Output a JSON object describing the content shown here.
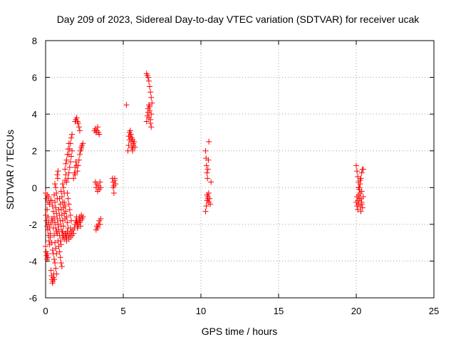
{
  "chart_data": {
    "type": "scatter",
    "title": "Day 209 of 2023, Sidereal Day-to-day VTEC variation (SDTVAR) for receiver ucak",
    "xlabel": "GPS time / hours",
    "ylabel": "SDTVAR / TECUs",
    "xlim": [
      0,
      25
    ],
    "ylim": [
      -6,
      8
    ],
    "xticks": [
      "0",
      "5",
      "10",
      "15",
      "20",
      "25"
    ],
    "yticks": [
      "-6",
      "-4",
      "-2",
      "0",
      "2",
      "4",
      "6",
      "8"
    ],
    "grid": true,
    "marker": "+",
    "marker_color": "#ff0000",
    "series": [
      {
        "points": [
          [
            0.0,
            -3.2
          ],
          [
            0.03,
            -3.5
          ],
          [
            0.06,
            -3.7
          ],
          [
            0.09,
            -3.9
          ],
          [
            0.12,
            -3.6
          ],
          [
            0.15,
            -3.8
          ],
          [
            0.0,
            -0.3
          ],
          [
            0.05,
            -0.6
          ],
          [
            0.1,
            -0.4
          ],
          [
            0.15,
            -0.8
          ],
          [
            0.2,
            -0.5
          ],
          [
            0.25,
            -0.9
          ],
          [
            0.3,
            -0.7
          ],
          [
            0.02,
            -1.5
          ],
          [
            0.06,
            -1.8
          ],
          [
            0.1,
            -2.1
          ],
          [
            0.14,
            -2.3
          ],
          [
            0.18,
            -2.6
          ],
          [
            0.22,
            -2.9
          ],
          [
            0.26,
            -3.1
          ],
          [
            0.3,
            -2.7
          ],
          [
            0.1,
            -1.2
          ],
          [
            0.15,
            -1.6
          ],
          [
            0.2,
            -1.9
          ],
          [
            0.25,
            -2.2
          ],
          [
            0.3,
            -2.5
          ],
          [
            0.35,
            -2.0
          ],
          [
            0.4,
            -1.7
          ],
          [
            0.35,
            -4.5
          ],
          [
            0.38,
            -4.8
          ],
          [
            0.41,
            -5.0
          ],
          [
            0.44,
            -5.2
          ],
          [
            0.47,
            -5.1
          ],
          [
            0.5,
            -4.9
          ],
          [
            0.53,
            -4.7
          ],
          [
            0.56,
            -5.0
          ],
          [
            0.4,
            -3.0
          ],
          [
            0.45,
            -3.4
          ],
          [
            0.5,
            -3.6
          ],
          [
            0.55,
            -3.9
          ],
          [
            0.6,
            -4.1
          ],
          [
            0.65,
            -4.4
          ],
          [
            0.7,
            -4.7
          ],
          [
            0.4,
            -0.7
          ],
          [
            0.45,
            -1.0
          ],
          [
            0.5,
            -1.3
          ],
          [
            0.55,
            -1.6
          ],
          [
            0.6,
            -1.9
          ],
          [
            0.65,
            -2.2
          ],
          [
            0.7,
            -2.4
          ],
          [
            0.45,
            -1.8
          ],
          [
            0.5,
            -2.2
          ],
          [
            0.55,
            -2.6
          ],
          [
            0.6,
            -3.0
          ],
          [
            0.65,
            -3.3
          ],
          [
            0.7,
            -3.6
          ],
          [
            0.55,
            -0.4
          ],
          [
            0.6,
            -0.8
          ],
          [
            0.65,
            -1.1
          ],
          [
            0.7,
            -1.4
          ],
          [
            0.75,
            -1.7
          ],
          [
            0.8,
            -2.0
          ],
          [
            0.6,
            0.2
          ],
          [
            0.65,
            0.0
          ],
          [
            0.7,
            -0.3
          ],
          [
            0.75,
            -0.6
          ],
          [
            0.78,
            0.5
          ],
          [
            0.8,
            0.9
          ],
          [
            0.75,
            0.7
          ],
          [
            0.75,
            -2.5
          ],
          [
            0.8,
            -2.9
          ],
          [
            0.85,
            -3.2
          ],
          [
            0.9,
            -3.5
          ],
          [
            0.95,
            -3.8
          ],
          [
            1.0,
            -4.1
          ],
          [
            1.05,
            -4.3
          ],
          [
            0.8,
            -2.0
          ],
          [
            0.85,
            -2.3
          ],
          [
            0.9,
            -2.6
          ],
          [
            0.95,
            -2.9
          ],
          [
            1.0,
            -3.1
          ],
          [
            0.85,
            -1.2
          ],
          [
            0.9,
            -1.5
          ],
          [
            0.95,
            -1.8
          ],
          [
            1.0,
            -2.1
          ],
          [
            1.05,
            -2.4
          ],
          [
            1.1,
            -2.7
          ],
          [
            0.9,
            -0.6
          ],
          [
            0.95,
            -0.9
          ],
          [
            1.0,
            -1.2
          ],
          [
            1.05,
            -1.5
          ],
          [
            1.1,
            -1.8
          ],
          [
            1.15,
            -2.1
          ],
          [
            1.0,
            -0.2
          ],
          [
            1.05,
            -0.5
          ],
          [
            1.1,
            -0.8
          ],
          [
            1.15,
            -1.1
          ],
          [
            1.2,
            -1.4
          ],
          [
            1.25,
            -1.7
          ],
          [
            1.1,
            -2.4
          ],
          [
            1.15,
            -2.6
          ],
          [
            1.2,
            -2.8
          ],
          [
            1.25,
            -2.5
          ],
          [
            1.3,
            -2.7
          ],
          [
            1.35,
            -2.9
          ],
          [
            1.1,
            0.2
          ],
          [
            1.15,
            0.0
          ],
          [
            1.2,
            -0.3
          ],
          [
            1.25,
            0.4
          ],
          [
            1.3,
            0.7
          ],
          [
            1.35,
            0.3
          ],
          [
            1.2,
            -0.8
          ],
          [
            1.25,
            -1.0
          ],
          [
            1.3,
            -1.3
          ],
          [
            1.35,
            -1.6
          ],
          [
            1.4,
            -1.9
          ],
          [
            1.45,
            -2.2
          ],
          [
            1.25,
            1.0
          ],
          [
            1.3,
            1.3
          ],
          [
            1.35,
            1.5
          ],
          [
            1.4,
            1.8
          ],
          [
            1.45,
            2.1
          ],
          [
            1.5,
            2.4
          ],
          [
            1.3,
            -2.5
          ],
          [
            1.35,
            -2.7
          ],
          [
            1.4,
            -2.4
          ],
          [
            1.45,
            -2.6
          ],
          [
            1.5,
            -2.8
          ],
          [
            1.55,
            -2.5
          ],
          [
            1.6,
            -2.7
          ],
          [
            1.4,
            -0.3
          ],
          [
            1.45,
            -0.6
          ],
          [
            1.5,
            -0.9
          ],
          [
            1.55,
            -1.2
          ],
          [
            1.6,
            -1.5
          ],
          [
            1.65,
            -1.8
          ],
          [
            1.45,
            0.5
          ],
          [
            1.5,
            0.8
          ],
          [
            1.55,
            1.1
          ],
          [
            1.6,
            1.4
          ],
          [
            1.65,
            1.7
          ],
          [
            1.7,
            2.0
          ],
          [
            1.5,
            1.8
          ],
          [
            1.55,
            2.1
          ],
          [
            1.6,
            2.4
          ],
          [
            1.65,
            2.7
          ],
          [
            1.7,
            2.9
          ],
          [
            1.6,
            -2.2
          ],
          [
            1.65,
            -2.4
          ],
          [
            1.7,
            -2.6
          ],
          [
            1.75,
            -2.3
          ],
          [
            1.8,
            -2.5
          ],
          [
            1.8,
            0.5
          ],
          [
            1.85,
            0.8
          ],
          [
            1.9,
            1.1
          ],
          [
            1.95,
            1.4
          ],
          [
            2.0,
            1.2
          ],
          [
            1.9,
            0.7
          ],
          [
            1.85,
            -2.2
          ],
          [
            1.9,
            -2.0
          ],
          [
            1.95,
            -1.8
          ],
          [
            2.0,
            -1.6
          ],
          [
            2.05,
            -1.9
          ],
          [
            2.1,
            -2.1
          ],
          [
            1.9,
            3.6
          ],
          [
            1.95,
            3.7
          ],
          [
            2.0,
            3.8
          ],
          [
            2.05,
            3.6
          ],
          [
            2.1,
            3.5
          ],
          [
            2.15,
            3.3
          ],
          [
            2.2,
            3.1
          ],
          [
            2.0,
            -1.9
          ],
          [
            2.05,
            -2.2
          ],
          [
            2.1,
            -2.0
          ],
          [
            2.15,
            -1.7
          ],
          [
            2.2,
            -1.9
          ],
          [
            2.25,
            -2.1
          ],
          [
            2.05,
            0.9
          ],
          [
            2.1,
            1.2
          ],
          [
            2.15,
            1.5
          ],
          [
            2.2,
            1.8
          ],
          [
            2.25,
            2.0
          ],
          [
            2.3,
            2.2
          ],
          [
            2.2,
            -1.6
          ],
          [
            2.25,
            -1.8
          ],
          [
            2.3,
            -1.5
          ],
          [
            2.35,
            -1.7
          ],
          [
            2.4,
            -1.6
          ],
          [
            2.3,
            2.1
          ],
          [
            2.35,
            2.3
          ],
          [
            2.4,
            2.4
          ],
          [
            3.2,
            3.2
          ],
          [
            3.25,
            3.0
          ],
          [
            3.3,
            3.1
          ],
          [
            3.35,
            3.3
          ],
          [
            3.4,
            3.0
          ],
          [
            3.45,
            2.9
          ],
          [
            3.15,
            3.1
          ],
          [
            3.2,
            0.3
          ],
          [
            3.25,
            0.0
          ],
          [
            3.3,
            0.2
          ],
          [
            3.35,
            -0.2
          ],
          [
            3.4,
            0.1
          ],
          [
            3.45,
            -0.1
          ],
          [
            3.5,
            0.3
          ],
          [
            3.55,
            0.0
          ],
          [
            3.25,
            -2.3
          ],
          [
            3.3,
            -2.1
          ],
          [
            3.35,
            -2.2
          ],
          [
            3.4,
            -2.0
          ],
          [
            3.45,
            -1.8
          ],
          [
            3.5,
            -2.0
          ],
          [
            3.55,
            -1.7
          ],
          [
            4.3,
            0.5
          ],
          [
            4.35,
            0.3
          ],
          [
            4.4,
            0.1
          ],
          [
            4.45,
            0.4
          ],
          [
            4.5,
            0.2
          ],
          [
            4.35,
            0.0
          ],
          [
            4.4,
            -0.3
          ],
          [
            4.45,
            0.5
          ],
          [
            5.2,
            4.5
          ],
          [
            5.3,
            2.0
          ],
          [
            5.35,
            2.3
          ],
          [
            5.4,
            2.6
          ],
          [
            5.45,
            2.8
          ],
          [
            5.5,
            2.5
          ],
          [
            5.55,
            2.2
          ],
          [
            5.6,
            2.0
          ],
          [
            5.65,
            2.4
          ],
          [
            5.35,
            2.8
          ],
          [
            5.4,
            3.0
          ],
          [
            5.45,
            3.1
          ],
          [
            5.5,
            2.9
          ],
          [
            5.55,
            2.7
          ],
          [
            5.6,
            2.1
          ],
          [
            5.65,
            2.3
          ],
          [
            5.7,
            2.5
          ],
          [
            5.75,
            2.2
          ],
          [
            5.6,
            2.6
          ],
          [
            6.5,
            3.6
          ],
          [
            6.55,
            3.9
          ],
          [
            6.6,
            4.1
          ],
          [
            6.65,
            3.8
          ],
          [
            6.7,
            4.2
          ],
          [
            6.75,
            3.7
          ],
          [
            6.8,
            4.0
          ],
          [
            6.5,
            6.2
          ],
          [
            6.55,
            6.1
          ],
          [
            6.6,
            6.0
          ],
          [
            6.65,
            5.8
          ],
          [
            6.7,
            5.5
          ],
          [
            6.75,
            5.2
          ],
          [
            6.8,
            4.9
          ],
          [
            6.85,
            4.6
          ],
          [
            6.6,
            4.3
          ],
          [
            6.65,
            4.5
          ],
          [
            6.7,
            4.4
          ],
          [
            6.75,
            3.5
          ],
          [
            6.8,
            3.3
          ],
          [
            10.3,
            2.0
          ],
          [
            10.33,
            1.6
          ],
          [
            10.36,
            1.2
          ],
          [
            10.39,
            0.8
          ],
          [
            10.42,
            0.5
          ],
          [
            10.45,
            1.0
          ],
          [
            10.48,
            1.5
          ],
          [
            10.51,
            2.5
          ],
          [
            10.3,
            -1.3
          ],
          [
            10.35,
            -1.0
          ],
          [
            10.4,
            -0.7
          ],
          [
            10.45,
            -0.5
          ],
          [
            10.5,
            -0.8
          ],
          [
            10.55,
            -0.6
          ],
          [
            10.6,
            -0.9
          ],
          [
            10.65,
            0.3
          ],
          [
            10.4,
            -0.4
          ],
          [
            10.45,
            -0.6
          ],
          [
            10.5,
            -0.3
          ],
          [
            20.0,
            1.2
          ],
          [
            20.05,
            0.9
          ],
          [
            20.1,
            0.6
          ],
          [
            20.15,
            0.3
          ],
          [
            20.2,
            0.0
          ],
          [
            20.25,
            -0.3
          ],
          [
            20.3,
            -0.6
          ],
          [
            20.35,
            -0.9
          ],
          [
            20.05,
            -1.0
          ],
          [
            20.1,
            -0.7
          ],
          [
            20.15,
            -0.4
          ],
          [
            20.2,
            -0.1
          ],
          [
            20.25,
            0.2
          ],
          [
            20.3,
            0.5
          ],
          [
            20.35,
            0.8
          ],
          [
            20.4,
            1.0
          ],
          [
            20.1,
            -1.2
          ],
          [
            20.15,
            -0.9
          ],
          [
            20.2,
            -0.6
          ],
          [
            20.25,
            -1.0
          ],
          [
            20.3,
            -1.3
          ],
          [
            20.35,
            -0.8
          ],
          [
            20.4,
            -1.1
          ],
          [
            20.0,
            -0.8
          ],
          [
            20.05,
            -0.5
          ],
          [
            20.15,
            0.0
          ],
          [
            20.25,
            0.4
          ],
          [
            20.35,
            -0.2
          ],
          [
            20.45,
            1.0
          ],
          [
            20.45,
            -0.5
          ]
        ]
      }
    ]
  }
}
